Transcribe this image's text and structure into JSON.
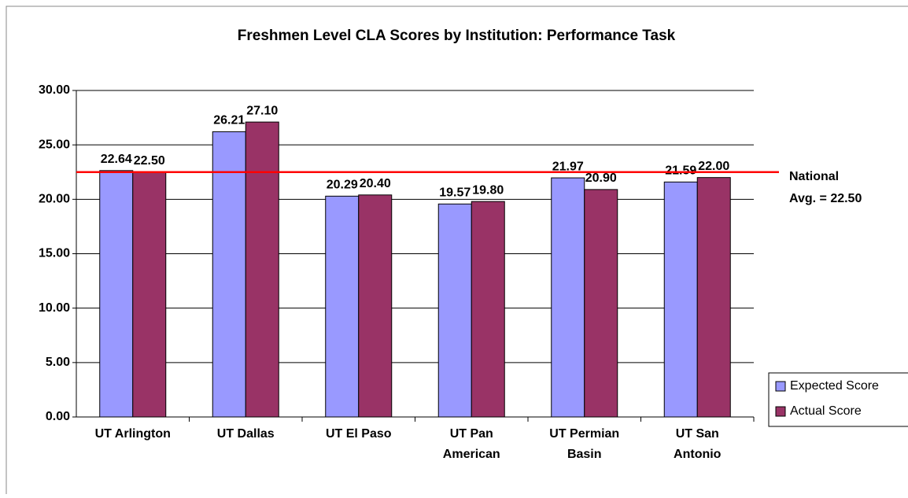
{
  "chart_data": {
    "type": "bar",
    "title": "Freshmen Level CLA Scores by Institution: Performance Task",
    "categories": [
      "UT Arlington",
      "UT Dallas",
      "UT El Paso",
      "UT Pan\nAmerican",
      "UT Permian\nBasin",
      "UT San\nAntonio"
    ],
    "series": [
      {
        "name": "Expected Score",
        "color": "#9999ff",
        "values": [
          22.64,
          26.21,
          20.29,
          19.57,
          21.97,
          21.59
        ],
        "value_labels": [
          "22.64",
          "26.21",
          "20.29",
          "19.57",
          "21.97",
          "21.59"
        ]
      },
      {
        "name": "Actual Score",
        "color": "#993366",
        "values": [
          22.5,
          27.1,
          20.4,
          19.8,
          20.9,
          22.0
        ],
        "value_labels": [
          "22.50",
          "27.10",
          "20.40",
          "19.80",
          "20.90",
          "22.00"
        ]
      }
    ],
    "ylim": [
      0,
      30
    ],
    "yticks": [
      {
        "value": 0,
        "label": "0.00"
      },
      {
        "value": 5,
        "label": "5.00"
      },
      {
        "value": 10,
        "label": "10.00"
      },
      {
        "value": 15,
        "label": "15.00"
      },
      {
        "value": 20,
        "label": "20.00"
      },
      {
        "value": 25,
        "label": "25.00"
      },
      {
        "value": 30,
        "label": "30.00"
      }
    ],
    "grid": true,
    "legend": "lower right",
    "reference_line": {
      "value": 22.5,
      "color": "#ff0000",
      "label": [
        "National",
        "Avg. = 22.50"
      ]
    }
  }
}
